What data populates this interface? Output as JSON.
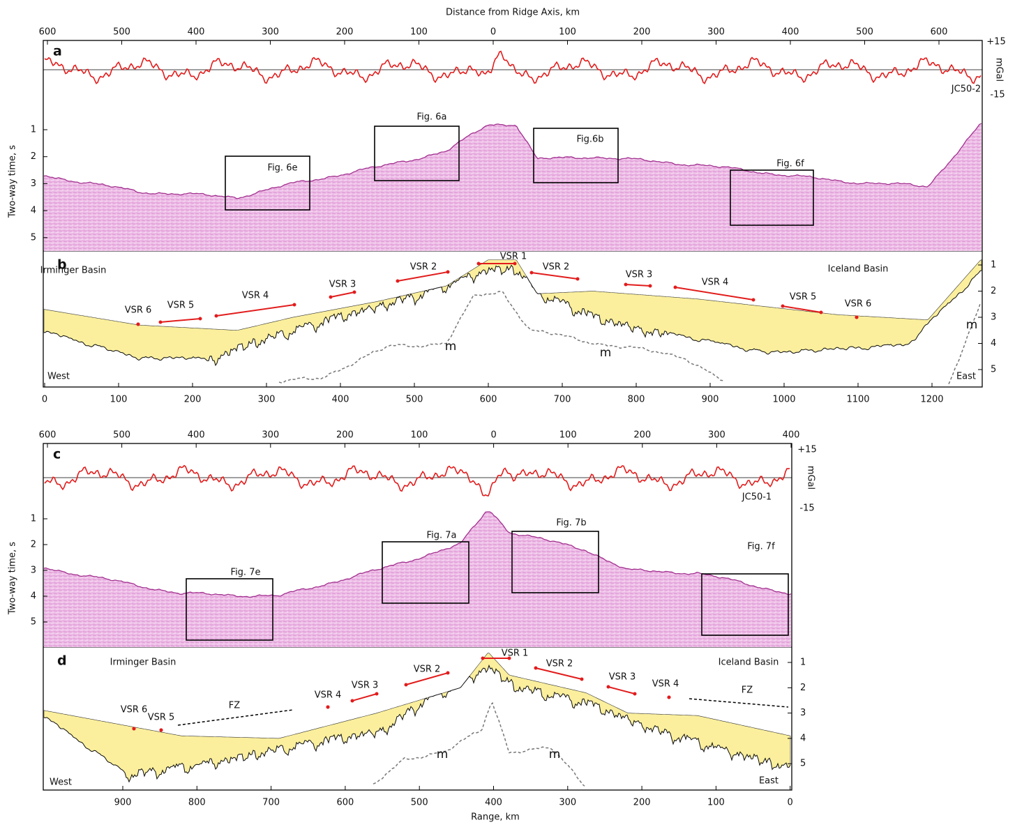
{
  "top_figure": {
    "axis_title": "Distance from Ridge Axis, km",
    "top_ticks": [
      600,
      500,
      400,
      300,
      200,
      100,
      0,
      100,
      200,
      300,
      400,
      500,
      600
    ],
    "gravity": {
      "label": "a",
      "profile": "JC50-2",
      "unit": "mGal",
      "ticks": [
        "+15",
        -15
      ]
    },
    "seismic": {
      "axis_title": "Two-way time, s",
      "ticks": [
        1,
        2,
        3,
        4,
        5
      ],
      "boxes": [
        "Fig. 6e",
        "Fig. 6a",
        "Fig.6b",
        "Fig. 6f"
      ]
    },
    "interpretation": {
      "label": "b",
      "ticks": [
        1,
        2,
        3,
        4,
        5
      ],
      "annotations": [
        "Irminger Basin",
        "Iceland Basin",
        "VSR 1",
        "VSR 2",
        "VSR 2",
        "VSR 3",
        "VSR 3",
        "VSR 4",
        "VSR 4",
        "VSR 5",
        "VSR 5",
        "VSR 6",
        "VSR 6",
        "m",
        "m",
        "m",
        "West",
        "East"
      ]
    },
    "bottom_ticks": [
      0,
      100,
      200,
      300,
      400,
      500,
      600,
      700,
      800,
      900,
      1000,
      1100,
      1200
    ]
  },
  "bottom_figure": {
    "top_ticks": [
      600,
      500,
      400,
      300,
      200,
      100,
      0,
      100,
      200,
      300,
      400
    ],
    "gravity": {
      "label": "c",
      "profile": "JC50-1",
      "unit": "mGal",
      "ticks": [
        "+15",
        -15
      ]
    },
    "seismic": {
      "axis_title": "Two-way time, s",
      "ticks": [
        1,
        2,
        3,
        4,
        5
      ],
      "boxes": [
        "Fig. 7e",
        "Fig. 7a",
        "Fig. 7b",
        "Fig. 7f"
      ]
    },
    "interpretation": {
      "label": "d",
      "ticks": [
        1,
        2,
        3,
        4,
        5
      ],
      "annotations": [
        "Irminger Basin",
        "Iceland Basin",
        "VSR 1",
        "VSR 2",
        "VSR 2",
        "VSR 3",
        "VSR 3",
        "VSR 4",
        "VSR 4",
        "VSR 5",
        "VSR 6",
        "FZ",
        "FZ",
        "m",
        "m",
        "West",
        "East"
      ]
    },
    "bottom_ticks": [
      900,
      800,
      700,
      600,
      500,
      400,
      300,
      200,
      100,
      0
    ],
    "axis_title": "Range, km"
  }
}
